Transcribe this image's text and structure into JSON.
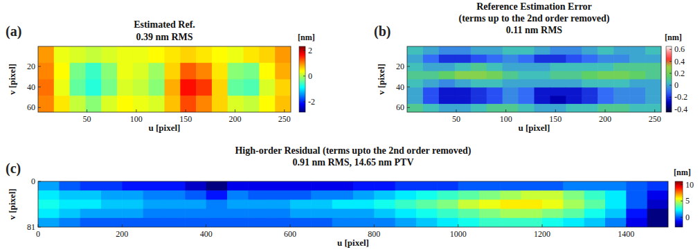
{
  "chart_data": [
    {
      "type": "heatmap",
      "title": [
        "Estimated Ref.",
        "0.39 nm RMS"
      ],
      "label": "(a)",
      "x_label": "u [pixel]",
      "y_label": "v [pixel]",
      "xlim": [
        0.5,
        256.5
      ],
      "ylim": [
        0.5,
        64.5
      ],
      "xticks": [
        50,
        100,
        150,
        200,
        250
      ],
      "yticks": [
        20,
        40,
        60
      ],
      "cells": [
        [
          0.9,
          0.3,
          0.2,
          0.1,
          0.2,
          0.3,
          0.3,
          0.4,
          0.5,
          0.6,
          0.5,
          0.4,
          0.3,
          0.5,
          0.6,
          0.9
        ],
        [
          1.0,
          0.4,
          -0.3,
          -0.6,
          -0.2,
          0.3,
          0.2,
          -0.1,
          0.6,
          1.2,
          1.0,
          0.5,
          -0.2,
          -0.3,
          0.4,
          0.8
        ],
        [
          1.1,
          0.3,
          -0.4,
          -0.7,
          -0.3,
          0.2,
          0.1,
          -0.2,
          0.8,
          1.6,
          1.4,
          0.6,
          -0.4,
          -0.5,
          0.2,
          0.6
        ],
        [
          1.0,
          0.5,
          0.1,
          -0.2,
          0.2,
          0.4,
          0.3,
          0.2,
          0.7,
          1.3,
          1.0,
          0.6,
          0.2,
          0.1,
          0.4,
          0.7
        ]
      ],
      "colorbar": {
        "label": "[nm]",
        "range": [
          -2.8,
          2.3
        ],
        "ticks": [
          -2,
          0,
          2
        ]
      }
    },
    {
      "type": "heatmap",
      "title": [
        "Reference Estimation Error",
        "(terms up to the 2nd order removed)",
        "0.11 nm RMS"
      ],
      "label": "(b)",
      "x_label": "u [pixel]",
      "y_label": "v [pixel]",
      "xlim": [
        0.5,
        256.5
      ],
      "ylim": [
        0.5,
        64.5
      ],
      "xticks": [
        50,
        100,
        150,
        200,
        250
      ],
      "yticks": [
        20,
        40,
        60
      ],
      "cells": [
        [
          0.05,
          0,
          -0.05,
          -0.05,
          0,
          0,
          0.05,
          0.05,
          0,
          -0.05,
          -0.05,
          0,
          0.05,
          0,
          0,
          0.05
        ],
        [
          0,
          -0.1,
          -0.2,
          -0.2,
          -0.15,
          -0.1,
          -0.05,
          -0.1,
          -0.2,
          -0.2,
          -0.15,
          -0.1,
          -0.05,
          -0.05,
          0,
          0
        ],
        [
          0.05,
          0,
          0,
          0.05,
          0.1,
          0.05,
          0,
          0,
          0,
          0.05,
          0.05,
          0.05,
          0.05,
          0.1,
          0.1,
          0.1
        ],
        [
          0.1,
          0.1,
          0.15,
          0.25,
          0.25,
          0.2,
          0.1,
          0.05,
          0.05,
          0.1,
          0.1,
          0.15,
          0.2,
          0.2,
          0.15,
          0.1
        ],
        [
          0.05,
          0,
          -0.05,
          0,
          0.05,
          0.05,
          0,
          0,
          0,
          0,
          0,
          0.05,
          0.05,
          0.05,
          0,
          0
        ],
        [
          0,
          -0.15,
          -0.25,
          -0.25,
          -0.2,
          -0.15,
          -0.05,
          -0.1,
          -0.25,
          -0.25,
          -0.25,
          -0.2,
          -0.1,
          -0.05,
          -0.05,
          0
        ],
        [
          0,
          -0.15,
          -0.25,
          -0.25,
          -0.2,
          -0.15,
          -0.05,
          -0.1,
          -0.25,
          -0.3,
          -0.25,
          -0.2,
          -0.1,
          -0.05,
          -0.05,
          0
        ],
        [
          0.1,
          0.05,
          0,
          0,
          0.05,
          0.1,
          0.1,
          0.05,
          0,
          0,
          0.05,
          0.05,
          0.1,
          0.1,
          0.05,
          0.05
        ]
      ],
      "colorbar": {
        "label": "[nm]",
        "range": [
          -0.45,
          0.65
        ],
        "ticks": [
          -0.4,
          -0.2,
          0,
          0.2,
          0.4,
          0.6
        ]
      }
    },
    {
      "type": "heatmap",
      "title": [
        "High-order Residual (terms upto the 2nd order removed)",
        "0.91 nm RMS, 14.65 nm PTV"
      ],
      "label": "(c)",
      "x_label": "u [pixel]",
      "y_label": "v [pixel]",
      "xlim": [
        0,
        1500
      ],
      "ylim": [
        0,
        81
      ],
      "xticks": [
        0,
        200,
        400,
        600,
        800,
        1000,
        1200,
        1400
      ],
      "yticks": [
        0,
        81
      ],
      "cells": [
        [
          1,
          0,
          -0.5,
          -0.5,
          -1,
          -1,
          -1,
          -2,
          -3,
          -1.5,
          -1.5,
          -1.5,
          -1.5,
          -1.5,
          -1.5,
          -1,
          -1,
          -0.5,
          -0.5,
          -0.5,
          0,
          0,
          0,
          0,
          0,
          0.5,
          0.5,
          0.5,
          0,
          -0.5
        ],
        [
          2,
          1.5,
          1.5,
          1,
          1,
          0.5,
          0.5,
          0,
          -1,
          0.5,
          0,
          0,
          0,
          0.5,
          0.5,
          1,
          1.5,
          2,
          2.5,
          3,
          3.5,
          4,
          4.5,
          5,
          5,
          4,
          3,
          2,
          0,
          -1.5
        ],
        [
          2.5,
          2,
          2,
          1.5,
          1.5,
          1,
          1,
          1,
          0.5,
          1,
          1,
          1,
          1.5,
          1.5,
          2,
          2,
          2.5,
          3,
          3.5,
          4,
          5,
          5.5,
          6,
          6,
          5.5,
          4.5,
          3.5,
          2,
          0,
          -2
        ],
        [
          2,
          1.5,
          1,
          1,
          1,
          0.5,
          0.5,
          0.5,
          0.5,
          0.5,
          0.5,
          0.5,
          1,
          1,
          1,
          1,
          1.5,
          2,
          2.5,
          3,
          3.5,
          4,
          4.5,
          4.5,
          4,
          3.5,
          2.5,
          1.5,
          -1,
          -3
        ],
        [
          1,
          0.5,
          0,
          0,
          0,
          0,
          0,
          0,
          0,
          0,
          0,
          0,
          0,
          0,
          0.5,
          0.5,
          0.5,
          1,
          1.5,
          2,
          2.5,
          3,
          3,
          3,
          2.5,
          2,
          1.5,
          0.5,
          -1.5,
          -3
        ]
      ],
      "colorbar": {
        "label": "[nm]",
        "range": [
          -3,
          11
        ],
        "ticks": [
          0,
          5,
          10
        ]
      }
    }
  ]
}
